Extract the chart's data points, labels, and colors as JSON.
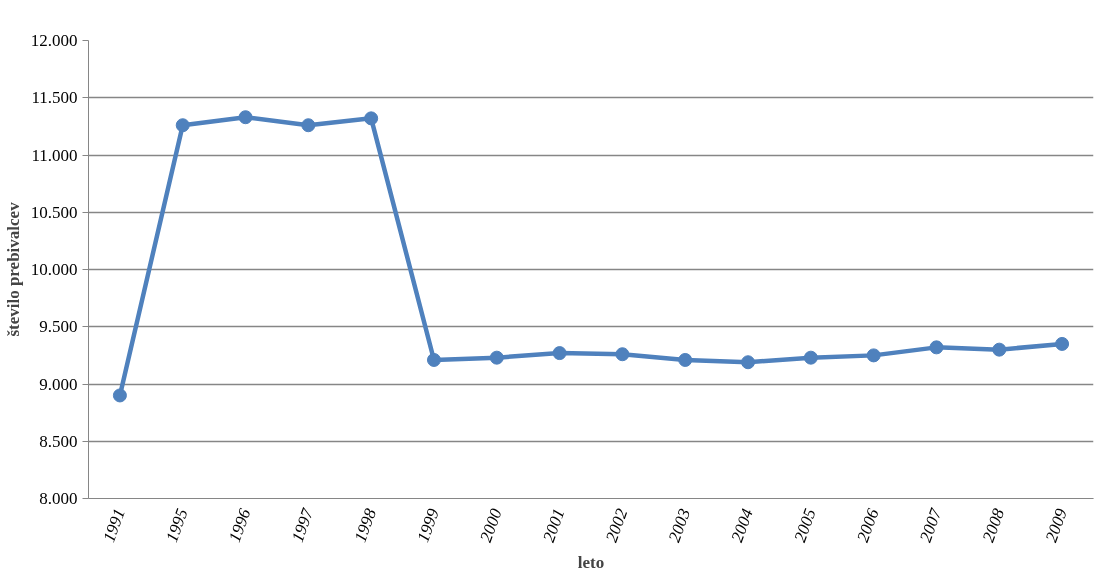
{
  "chart_data": {
    "type": "line",
    "xlabel": "leto",
    "ylabel": "število prebivalcev",
    "categories": [
      "1991",
      "1995",
      "1996",
      "1997",
      "1998",
      "1999",
      "2000",
      "2001",
      "2002",
      "2003",
      "2004",
      "2005",
      "2006",
      "2007",
      "2008",
      "2009"
    ],
    "series": [
      {
        "color": "#4f81bd",
        "values": [
          8900,
          11260,
          11330,
          11260,
          11320,
          9210,
          9230,
          9270,
          9260,
          9210,
          9190,
          9230,
          9250,
          9320,
          9300,
          9350
        ]
      }
    ],
    "ylim": [
      8000,
      12000
    ],
    "yticks": [
      {
        "value": 8000,
        "label": "8.000"
      },
      {
        "value": 8500,
        "label": "8.500"
      },
      {
        "value": 9000,
        "label": "9.000"
      },
      {
        "value": 9500,
        "label": "9.500"
      },
      {
        "value": 10000,
        "label": "10.000"
      },
      {
        "value": 10500,
        "label": "10.500"
      },
      {
        "value": 11000,
        "label": "11.000"
      },
      {
        "value": 11500,
        "label": "11.500"
      },
      {
        "value": 12000,
        "label": "12.000"
      }
    ],
    "grid": "y",
    "marker": "circle",
    "line_style": "solid"
  }
}
